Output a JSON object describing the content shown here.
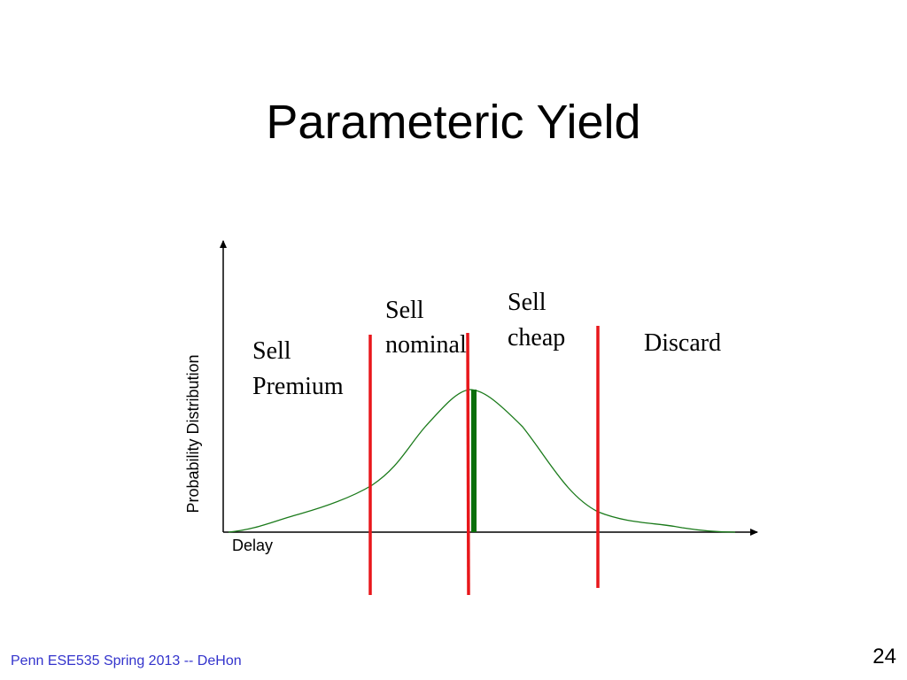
{
  "header": {
    "title": "Parameteric Yield"
  },
  "diagram": {
    "y_axis_label": "Probability Distribution",
    "x_axis_label": "Delay",
    "regions": [
      {
        "lines": [
          "Sell",
          "Premium"
        ]
      },
      {
        "lines": [
          "Sell",
          "nominal"
        ]
      },
      {
        "lines": [
          "Sell",
          "cheap"
        ]
      },
      {
        "lines": [
          "Discard"
        ]
      }
    ]
  },
  "footer": {
    "text": "Penn ESE535 Spring 2013 -- DeHon",
    "page": "24"
  }
}
